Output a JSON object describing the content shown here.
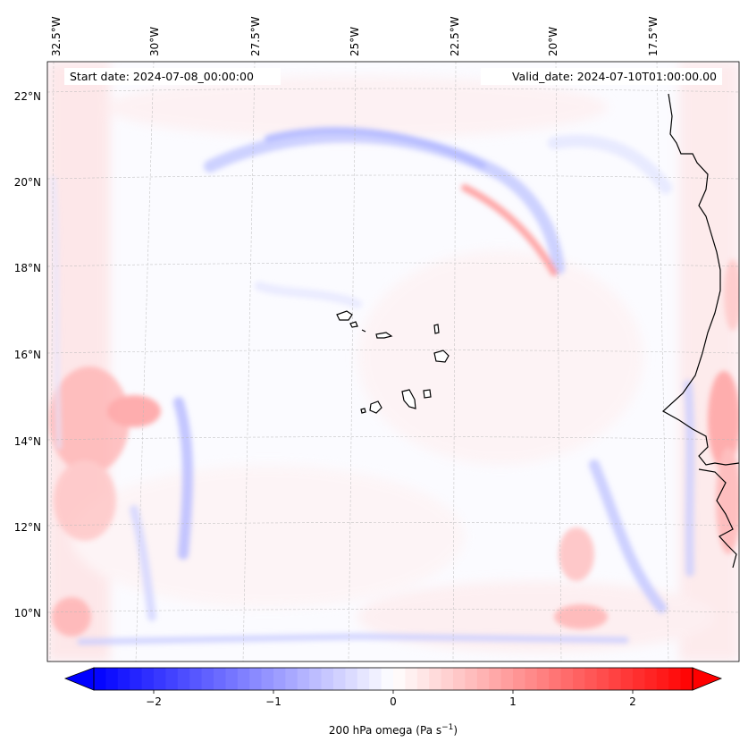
{
  "map": {
    "start_date": "Start date: 2024-07-08_00:00:00",
    "valid_date": "Valid_date: 2024-07-10T01:00:00.00",
    "lon_ticks": [
      "32.5°W",
      "30°W",
      "27.5°W",
      "25°W",
      "22.5°W",
      "20°W",
      "17.5°W"
    ],
    "lat_ticks": [
      "22°N",
      "20°N",
      "18°N",
      "16°N",
      "14°N",
      "12°N",
      "10°N"
    ],
    "colorbar": {
      "ticks": [
        "−2",
        "−1",
        "0",
        "1",
        "2"
      ],
      "tick_values": [
        -2,
        -1,
        0,
        1,
        2
      ],
      "range": [
        -2.5,
        2.5
      ],
      "label_main": "200 hPa omega (Pa s",
      "label_exp": "−1",
      "label_close": ")",
      "colors": {
        "negative": "#0000ff",
        "zero": "#ffffff",
        "positive": "#ff0000"
      }
    }
  }
}
